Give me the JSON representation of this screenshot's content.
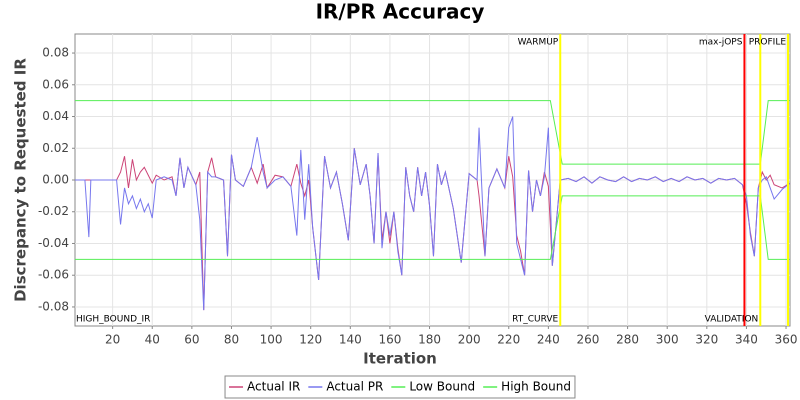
{
  "chart_data": {
    "type": "line",
    "title": "IR/PR Accuracy",
    "x_label": "Iteration",
    "y_label": "Discrepancy to Requested IR",
    "xlim": [
      1,
      362
    ],
    "ylim": [
      -0.092,
      0.092
    ],
    "xticks": [
      20,
      40,
      60,
      80,
      100,
      120,
      140,
      160,
      180,
      200,
      220,
      240,
      260,
      280,
      300,
      320,
      340,
      360
    ],
    "yticks": [
      -0.08,
      -0.06,
      -0.04,
      -0.02,
      {
        "value": 0,
        "label": "0.00"
      },
      0.02,
      0.04,
      0.06,
      0.08
    ],
    "grid": true,
    "legend": "bottom",
    "x": [
      1,
      6,
      8,
      9,
      22,
      24,
      26,
      28,
      30,
      32,
      34,
      36,
      38,
      40,
      42,
      46,
      50,
      52,
      54,
      56,
      58,
      62,
      64,
      66,
      68,
      70,
      72,
      76,
      78,
      80,
      82,
      86,
      90,
      93,
      96,
      98,
      102,
      106,
      110,
      113,
      115,
      117,
      119,
      121,
      124,
      127,
      130,
      133,
      136,
      139,
      142,
      145,
      148,
      150,
      152,
      154,
      156,
      158,
      160,
      162,
      164,
      166,
      168,
      170,
      172,
      174,
      176,
      178,
      180,
      182,
      184,
      186,
      188,
      192,
      196,
      200,
      204,
      205,
      208,
      210,
      214,
      218,
      220,
      222,
      224,
      226,
      228,
      230,
      232,
      234,
      236,
      238,
      240,
      242,
      246,
      250,
      254,
      258,
      262,
      266,
      270,
      274,
      278,
      282,
      286,
      290,
      294,
      298,
      302,
      306,
      310,
      314,
      318,
      322,
      326,
      330,
      334,
      338,
      340,
      342,
      344,
      346,
      348,
      350,
      352,
      354,
      358,
      362
    ],
    "series": [
      {
        "name": "Actual IR",
        "color": "#cc4477",
        "values": [
          0,
          0,
          0,
          0,
          0,
          0.005,
          0.015,
          -0.005,
          0.013,
          0,
          0.005,
          0.008,
          0.003,
          -0.002,
          0.003,
          0,
          0.002,
          -0.01,
          0.014,
          -0.005,
          0.008,
          -0.003,
          0.005,
          -0.082,
          0.005,
          0.014,
          0.002,
          0,
          -0.048,
          0.016,
          0,
          -0.004,
          0.008,
          -0.002,
          0.01,
          -0.005,
          0.003,
          0.002,
          -0.004,
          0.01,
          -0.002,
          -0.01,
          0,
          -0.03,
          -0.063,
          0.015,
          -0.005,
          0.005,
          -0.015,
          -0.038,
          0.02,
          -0.003,
          0.01,
          -0.01,
          -0.04,
          0.016,
          -0.038,
          -0.02,
          -0.04,
          -0.02,
          -0.043,
          -0.06,
          0.008,
          -0.01,
          -0.02,
          0.008,
          -0.01,
          0.005,
          -0.016,
          -0.048,
          0.01,
          -0.003,
          0.005,
          -0.018,
          -0.052,
          0.004,
          0,
          -0.01,
          -0.048,
          -0.005,
          0.007,
          -0.005,
          0.015,
          0.002,
          -0.035,
          -0.045,
          -0.06,
          0.006,
          -0.02,
          0,
          -0.01,
          0.005,
          -0.004,
          -0.054,
          0,
          0.001,
          -0.001,
          0.002,
          -0.002,
          0.002,
          0,
          -0.001,
          0.002,
          -0.001,
          0.001,
          0,
          0.002,
          -0.001,
          0.001,
          -0.001,
          0.002,
          0,
          0.001,
          -0.002,
          0.001,
          0,
          0.001,
          -0.003,
          -0.015,
          -0.033,
          -0.048,
          -0.005,
          0.005,
          0,
          0.003,
          -0.003,
          -0.005,
          -0.002
        ]
      },
      {
        "name": "Actual PR",
        "color": "#7777ee",
        "values": [
          0,
          0,
          -0.036,
          0,
          0,
          -0.028,
          -0.005,
          -0.015,
          -0.01,
          -0.018,
          -0.012,
          -0.02,
          -0.015,
          -0.024,
          0,
          0.002,
          0,
          -0.01,
          0.014,
          -0.005,
          0.008,
          -0.003,
          -0.025,
          -0.082,
          0.005,
          0.002,
          0.002,
          0,
          -0.048,
          0.016,
          0,
          -0.004,
          0.008,
          0.027,
          0.005,
          -0.005,
          0,
          0.002,
          -0.004,
          -0.035,
          0.019,
          -0.025,
          0.01,
          -0.03,
          -0.063,
          0.015,
          -0.005,
          0.005,
          -0.015,
          -0.038,
          0.02,
          -0.003,
          0.01,
          -0.01,
          -0.04,
          0.017,
          -0.043,
          -0.02,
          -0.035,
          -0.02,
          -0.045,
          -0.06,
          0.008,
          -0.01,
          -0.02,
          0.008,
          -0.01,
          0.005,
          -0.016,
          -0.048,
          0.01,
          -0.003,
          0.005,
          -0.018,
          -0.052,
          0.004,
          0,
          0.033,
          -0.048,
          -0.005,
          0.007,
          -0.005,
          0.033,
          0.04,
          -0.04,
          -0.05,
          -0.06,
          0.006,
          -0.02,
          0,
          -0.01,
          0.002,
          0.033,
          -0.054,
          0,
          0.001,
          -0.001,
          0.002,
          -0.002,
          0.002,
          0,
          -0.001,
          0.002,
          -0.001,
          0.001,
          0,
          0.002,
          -0.001,
          0.001,
          -0.001,
          0.002,
          0,
          0.001,
          -0.002,
          0.001,
          0,
          0.001,
          -0.003,
          -0.01,
          -0.035,
          -0.048,
          -0.005,
          0,
          0.002,
          -0.005,
          -0.012,
          -0.006,
          -0.002
        ]
      },
      {
        "name": "Low Bound",
        "color": "#55ee55",
        "x": [
          1,
          241,
          247,
          347,
          351,
          362
        ],
        "values": [
          -0.05,
          -0.05,
          -0.01,
          -0.01,
          -0.05,
          -0.05
        ]
      },
      {
        "name": "High Bound",
        "color": "#55ee55",
        "x": [
          1,
          241,
          247,
          347,
          351,
          362
        ],
        "values": [
          0.05,
          0.05,
          0.01,
          0.01,
          0.05,
          0.05
        ]
      }
    ],
    "markers": [
      {
        "x": 246,
        "color": "#ffff00"
      },
      {
        "x": 339,
        "color": "#ff0000"
      },
      {
        "x": 347,
        "color": "#ffff00"
      },
      {
        "x": 361,
        "color": "#ffff00"
      }
    ],
    "annotations": [
      {
        "text": "WARMUP",
        "x": 246,
        "position": "top"
      },
      {
        "text": "max-jOPS",
        "x": 339,
        "position": "top"
      },
      {
        "text": "PROFILE",
        "x": 361,
        "position": "top"
      },
      {
        "text": "HIGH_BOUND_IR",
        "x": 1,
        "position": "bottom"
      },
      {
        "text": "RT_CURVE",
        "x": 246,
        "position": "bottom"
      },
      {
        "text": "VALIDATION",
        "x": 347,
        "position": "bottom"
      }
    ]
  }
}
